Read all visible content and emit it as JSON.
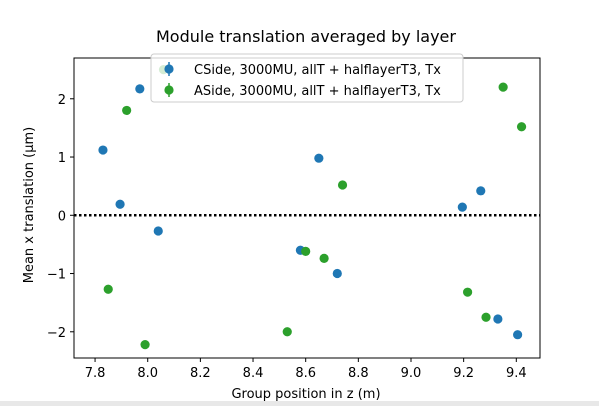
{
  "chart_data": {
    "type": "scatter",
    "title": "Module translation averaged by layer",
    "xlabel": "Group position in z (m)",
    "ylabel": "Mean x translation (μm)",
    "xlim": [
      7.72,
      9.49
    ],
    "ylim": [
      -2.45,
      2.7
    ],
    "xticks": [
      7.8,
      8.0,
      8.2,
      8.4,
      8.6,
      8.8,
      9.0,
      9.2,
      9.4
    ],
    "xtick_labels": [
      "7.8",
      "8.0",
      "8.2",
      "8.4",
      "8.6",
      "8.8",
      "9.0",
      "9.2",
      "9.4"
    ],
    "yticks": [
      -2,
      -1,
      0,
      1,
      2
    ],
    "ytick_labels": [
      "−2",
      "−1",
      "0",
      "1",
      "2"
    ],
    "reference_line_y": 0,
    "legend_position": "top-center",
    "grid": false,
    "series": [
      {
        "name": "CSide, 3000MU, allT + halflayerT3, Tx",
        "color": "#1f77b4",
        "x": [
          7.83,
          7.895,
          7.97,
          8.04,
          8.58,
          8.65,
          8.72,
          9.195,
          9.265,
          9.33,
          9.405
        ],
        "y": [
          1.12,
          0.19,
          2.17,
          -0.27,
          -0.6,
          0.98,
          -1.0,
          0.14,
          0.42,
          -1.78,
          -2.05
        ]
      },
      {
        "name": "ASide, 3000MU, allT + halflayerT3, Tx",
        "color": "#2ca02c",
        "x": [
          7.85,
          7.92,
          7.99,
          8.06,
          8.53,
          8.6,
          8.67,
          8.74,
          9.215,
          9.285,
          9.35,
          9.42
        ],
        "y": [
          -1.27,
          1.8,
          -2.22,
          2.5,
          -2.0,
          -0.62,
          -0.74,
          0.52,
          -1.32,
          -1.75,
          2.2,
          1.52
        ]
      }
    ]
  }
}
